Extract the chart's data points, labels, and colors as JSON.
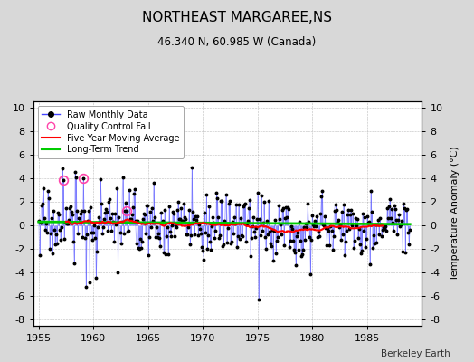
{
  "title": "NORTHEAST MARGAREE,NS",
  "subtitle": "46.340 N, 60.985 W (Canada)",
  "ylabel": "Temperature Anomaly (°C)",
  "credit": "Berkeley Earth",
  "xlim": [
    1954.5,
    1990.0
  ],
  "ylim": [
    -8.5,
    10.5
  ],
  "yticks": [
    -8,
    -6,
    -4,
    -2,
    0,
    2,
    4,
    6,
    8,
    10
  ],
  "xticks": [
    1955,
    1960,
    1965,
    1970,
    1975,
    1980,
    1985
  ],
  "bg_color": "#d8d8d8",
  "plot_bg_color": "#ffffff",
  "raw_line_color": "#4444ff",
  "raw_line_alpha": 0.6,
  "raw_dot_color": "#000000",
  "zero_line_color": "#00cc00",
  "moving_avg_color": "#ff0000",
  "qc_fail_color": "#ff44aa",
  "seed": 17,
  "n_months": 408,
  "start_year": 1955.0
}
